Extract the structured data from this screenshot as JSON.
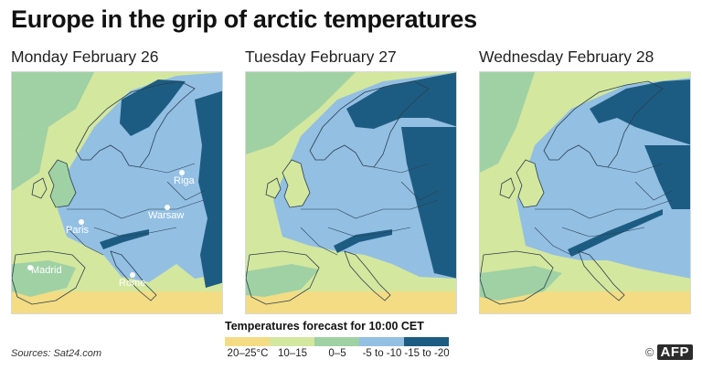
{
  "title": "Europe in the grip of arctic temperatures",
  "maps": [
    {
      "date": "Monday February 26"
    },
    {
      "date": "Tuesday February 27"
    },
    {
      "date": "Wednesday February 28"
    }
  ],
  "cities": [
    {
      "name": "Riga"
    },
    {
      "name": "Warsaw"
    },
    {
      "name": "Paris"
    },
    {
      "name": "Rome"
    },
    {
      "name": "Madrid"
    }
  ],
  "legend": {
    "title": "Temperatures forecast for 10:00 CET",
    "classes": [
      {
        "label": "20–25°C",
        "color": "#f3dc84"
      },
      {
        "label": "10–15",
        "color": "#d4e79e"
      },
      {
        "label": "0–5",
        "color": "#9fd1a4"
      },
      {
        "label": "-5 to -10",
        "color": "#93bfe3"
      },
      {
        "label": "-15 to -20",
        "color": "#1d5c82"
      }
    ]
  },
  "sources": "Sources: Sat24.com",
  "credit": {
    "copyright": "©",
    "agency": "AFP"
  }
}
